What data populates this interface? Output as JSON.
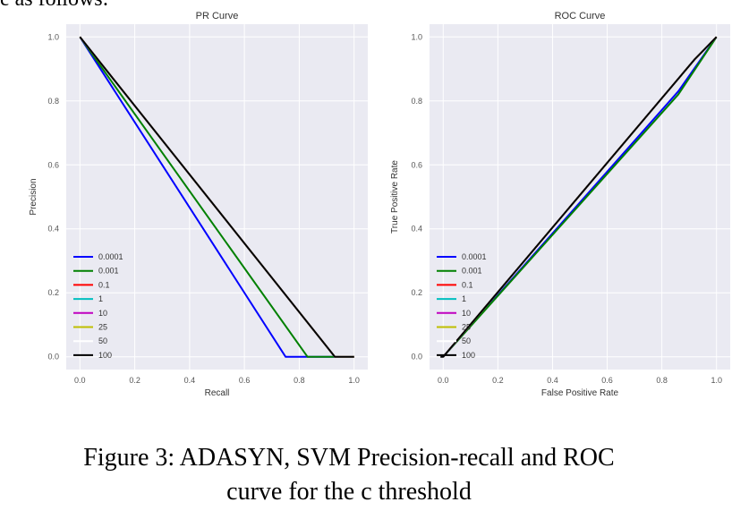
{
  "top_text": "e as follows:",
  "caption": {
    "line1": "Figure 3: ADASYN, SVM Precision-recall and ROC",
    "line2": "curve for the c threshold"
  },
  "chart_data": [
    {
      "type": "line",
      "title": "PR Curve",
      "xlabel": "Recall",
      "ylabel": "Precision",
      "xlim": [
        -0.05,
        1.05
      ],
      "ylim": [
        -0.04,
        1.04
      ],
      "xticks": [
        "0.0",
        "0.2",
        "0.4",
        "0.6",
        "0.8",
        "1.0"
      ],
      "yticks": [
        "0.0",
        "0.2",
        "0.4",
        "0.6",
        "0.8",
        "1.0"
      ],
      "grid": true,
      "legend_position": "lower-left",
      "series": [
        {
          "name": "0.0001",
          "color": "#0000ff",
          "x": [
            0.0,
            0.75,
            0.83,
            1.0
          ],
          "y": [
            1.0,
            0.0,
            0.0,
            0.0
          ]
        },
        {
          "name": "0.001",
          "color": "#008000",
          "x": [
            0.0,
            0.83,
            1.0
          ],
          "y": [
            1.0,
            0.0,
            0.0
          ]
        },
        {
          "name": "0.1",
          "color": "#ff0000",
          "x": [
            0.0,
            0.93,
            1.0
          ],
          "y": [
            1.0,
            0.0,
            0.0
          ]
        },
        {
          "name": "1",
          "color": "#00bfbf",
          "x": [
            0.0,
            0.93,
            1.0
          ],
          "y": [
            1.0,
            0.0,
            0.0
          ]
        },
        {
          "name": "10",
          "color": "#bf00bf",
          "x": [
            0.0,
            0.93,
            1.0
          ],
          "y": [
            1.0,
            0.0,
            0.0
          ]
        },
        {
          "name": "25",
          "color": "#bfbf00",
          "x": [
            0.0,
            0.93,
            1.0
          ],
          "y": [
            1.0,
            0.0,
            0.0
          ]
        },
        {
          "name": "50",
          "color": "#ffffff",
          "x": [
            0.0,
            0.93,
            1.0
          ],
          "y": [
            1.0,
            0.0,
            0.0
          ]
        },
        {
          "name": "100",
          "color": "#000000",
          "x": [
            0.0,
            0.93,
            1.0
          ],
          "y": [
            1.0,
            0.0,
            0.0
          ]
        }
      ]
    },
    {
      "type": "line",
      "title": "ROC Curve",
      "xlabel": "False Positive Rate",
      "ylabel": "True Positive Rate",
      "xlim": [
        -0.05,
        1.05
      ],
      "ylim": [
        -0.04,
        1.04
      ],
      "xticks": [
        "0.0",
        "0.2",
        "0.4",
        "0.6",
        "0.8",
        "1.0"
      ],
      "yticks": [
        "0.0",
        "0.2",
        "0.4",
        "0.6",
        "0.8",
        "1.0"
      ],
      "grid": true,
      "legend_position": "lower-left",
      "series": [
        {
          "name": "0.0001",
          "color": "#0000ff",
          "x": [
            0.0,
            0.86,
            1.0
          ],
          "y": [
            0.0,
            0.83,
            1.0
          ]
        },
        {
          "name": "0.001",
          "color": "#008000",
          "x": [
            0.0,
            0.86,
            1.0
          ],
          "y": [
            0.0,
            0.82,
            1.0
          ]
        },
        {
          "name": "0.1",
          "color": "#ff0000",
          "x": [
            0.0,
            0.92,
            1.0
          ],
          "y": [
            0.0,
            0.93,
            1.0
          ]
        },
        {
          "name": "1",
          "color": "#00bfbf",
          "x": [
            0.0,
            0.92,
            1.0
          ],
          "y": [
            0.0,
            0.93,
            1.0
          ]
        },
        {
          "name": "10",
          "color": "#bf00bf",
          "x": [
            0.0,
            0.92,
            1.0
          ],
          "y": [
            0.0,
            0.93,
            1.0
          ]
        },
        {
          "name": "25",
          "color": "#bfbf00",
          "x": [
            0.0,
            0.92,
            1.0
          ],
          "y": [
            0.0,
            0.93,
            1.0
          ]
        },
        {
          "name": "50",
          "color": "#ffffff",
          "x": [
            0.0,
            0.92,
            1.0
          ],
          "y": [
            0.0,
            0.93,
            1.0
          ]
        },
        {
          "name": "100",
          "color": "#000000",
          "x": [
            -0.01,
            0.0,
            0.92,
            1.0
          ],
          "y": [
            0.0,
            0.0,
            0.93,
            1.0
          ]
        }
      ]
    }
  ]
}
